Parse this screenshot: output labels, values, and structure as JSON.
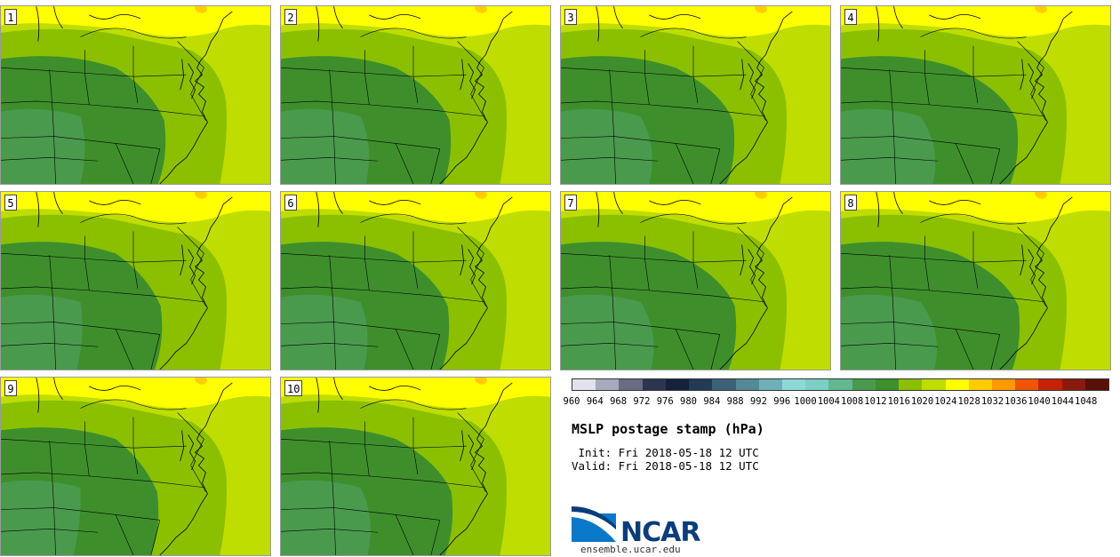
{
  "panels": [
    {
      "number": "1"
    },
    {
      "number": "2"
    },
    {
      "number": "3"
    },
    {
      "number": "4"
    },
    {
      "number": "5"
    },
    {
      "number": "6"
    },
    {
      "number": "7"
    },
    {
      "number": "8"
    },
    {
      "number": "9"
    },
    {
      "number": "10"
    }
  ],
  "colorbar": {
    "labels": [
      "960",
      "964",
      "968",
      "972",
      "976",
      "980",
      "984",
      "988",
      "992",
      "996",
      "1000",
      "1004",
      "1008",
      "1012",
      "1016",
      "1020",
      "1024",
      "1028",
      "1032",
      "1036",
      "1040",
      "1044",
      "1048"
    ],
    "colors": [
      "#e2e2ec",
      "#a9a9bd",
      "#6b6b85",
      "#2d3550",
      "#15203a",
      "#233a55",
      "#3c6278",
      "#538a95",
      "#6fb0b8",
      "#8fd8d8",
      "#7ad0c4",
      "#62b890",
      "#4a9a4e",
      "#3e8f2c",
      "#8bc000",
      "#bfdd00",
      "#ffff00",
      "#ffcc00",
      "#ff9900",
      "#ee5500",
      "#c42200",
      "#8a1a10",
      "#5a0f08"
    ]
  },
  "map_colors": {
    "c1008": "#4a9a4e",
    "c1012": "#3e8f2c",
    "c1016": "#8bc000",
    "c1020": "#bfdd00",
    "c1024": "#ffff00",
    "c1028": "#ffcc00"
  },
  "title": "MSLP postage stamp (hPa)",
  "init_line": " Init: Fri 2018-05-18 12 UTC",
  "valid_line": "Valid: Fri 2018-05-18 12 UTC",
  "logo_text": "NCAR",
  "url": "ensemble.ucar.edu"
}
